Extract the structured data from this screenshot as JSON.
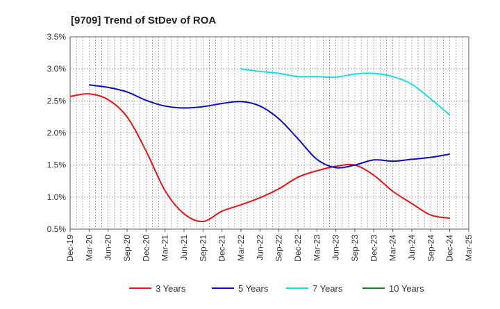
{
  "chart_data": {
    "type": "line",
    "title": "[9709]  Trend of StDev of ROA",
    "xlabel": "",
    "ylabel": "",
    "categories": [
      "Dec-19",
      "Mar-20",
      "Jun-20",
      "Sep-20",
      "Dec-20",
      "Mar-21",
      "Jun-21",
      "Sep-21",
      "Dec-21",
      "Mar-22",
      "Jun-22",
      "Sep-22",
      "Dec-22",
      "Mar-23",
      "Jun-23",
      "Sep-23",
      "Dec-23",
      "Mar-24",
      "Jun-24",
      "Sep-24",
      "Dec-24",
      "Mar-25"
    ],
    "ylim": [
      0.5,
      3.5
    ],
    "yticks": [
      "0.5%",
      "1.0%",
      "1.5%",
      "2.0%",
      "2.5%",
      "3.0%",
      "3.5%"
    ],
    "grid": true,
    "legend_position": "bottom",
    "series": [
      {
        "name": "3 Years",
        "color": "#ee1111",
        "values": [
          2.57,
          2.61,
          2.52,
          2.25,
          1.72,
          1.1,
          0.74,
          0.62,
          0.78,
          0.88,
          0.99,
          1.13,
          1.31,
          1.41,
          1.48,
          1.5,
          1.34,
          1.09,
          0.9,
          0.72,
          0.67,
          null
        ]
      },
      {
        "name": "5 Years",
        "color": "#0a0acc",
        "values": [
          null,
          2.75,
          2.71,
          2.64,
          2.51,
          2.42,
          2.39,
          2.41,
          2.46,
          2.49,
          2.42,
          2.22,
          1.91,
          1.59,
          1.46,
          1.5,
          1.58,
          1.56,
          1.59,
          1.62,
          1.67,
          null
        ]
      },
      {
        "name": "7 Years",
        "color": "#11e0e8",
        "values": [
          null,
          null,
          null,
          null,
          null,
          null,
          null,
          null,
          null,
          3.0,
          2.96,
          2.93,
          2.88,
          2.88,
          2.87,
          2.92,
          2.93,
          2.88,
          2.76,
          2.53,
          2.28,
          null
        ]
      },
      {
        "name": "10 Years",
        "color": "#118811",
        "values": [
          null,
          null,
          null,
          null,
          null,
          null,
          null,
          null,
          null,
          null,
          null,
          null,
          null,
          null,
          null,
          null,
          null,
          null,
          null,
          null,
          null,
          null
        ]
      }
    ]
  }
}
